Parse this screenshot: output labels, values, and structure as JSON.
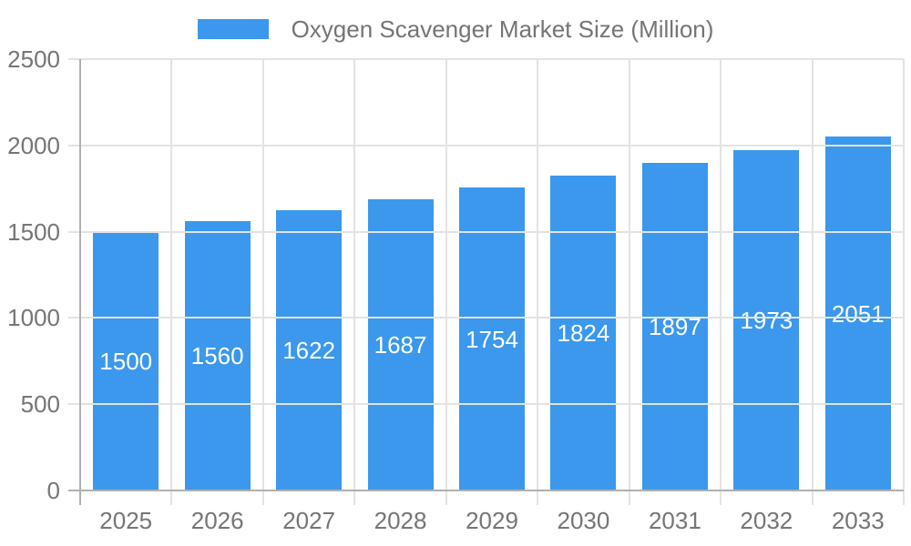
{
  "legend": {
    "series_label": "Oxygen Scavenger Market Size (Million)"
  },
  "chart_data": {
    "type": "bar",
    "title": "Oxygen Scavenger Market Size (Million)",
    "categories": [
      "2025",
      "2026",
      "2027",
      "2028",
      "2029",
      "2030",
      "2031",
      "2032",
      "2033"
    ],
    "series": [
      {
        "name": "Oxygen Scavenger Market Size (Million)",
        "values": [
          1500,
          1560,
          1622,
          1687,
          1754,
          1824,
          1897,
          1973,
          2051
        ]
      }
    ],
    "data_labels": [
      "1500",
      "1560",
      "1622",
      "1687",
      "1754",
      "1824",
      "1897",
      "1973",
      "2051"
    ],
    "xlabel": "",
    "ylabel": "",
    "ylim": [
      0,
      2500
    ],
    "yticks": [
      0,
      500,
      1000,
      1500,
      2000,
      2500
    ],
    "grid": true,
    "legend_position": "top",
    "colors": {
      "bar": "#3B98EC",
      "bar_label": "#FFFFFF",
      "axis_text": "#757575",
      "gridline": "#E3E3E3",
      "axis_line": "#B0B0B0",
      "background": "#FFFFFF"
    }
  }
}
